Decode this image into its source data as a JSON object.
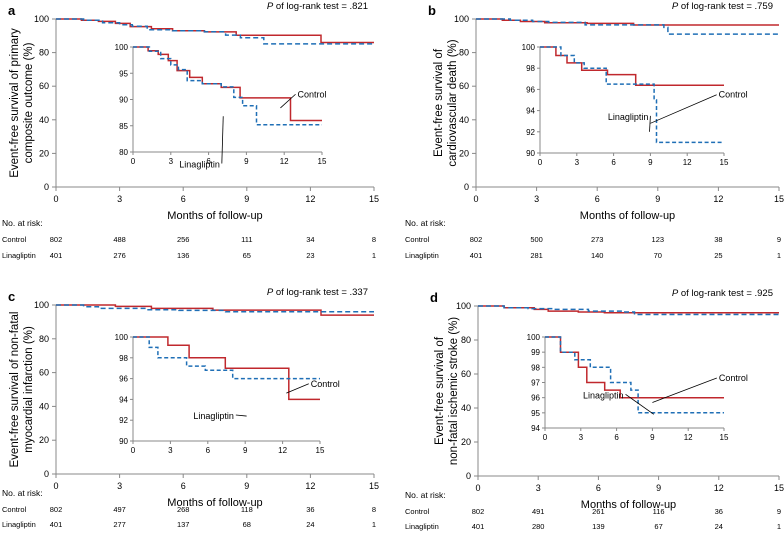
{
  "colors": {
    "control": "#c0282d",
    "linagliptin": "#1f6fb6",
    "axis": "#888888"
  },
  "chart_data": [
    {
      "type": "line",
      "panel_label": "a",
      "pvalue_label": "P",
      "pvalue_text": " of log-rank test = .821",
      "ylabel": [
        "Event-free survival of primary",
        "composite outcome (%)"
      ],
      "xlabel": "Months of follow-up",
      "xlim": [
        0,
        15
      ],
      "ylim": [
        0,
        100
      ],
      "xticks": [
        0,
        3,
        6,
        9,
        12,
        15
      ],
      "yticks": [
        0,
        20,
        40,
        60,
        80,
        100
      ],
      "series": [
        {
          "name": "Control",
          "x": [
            0,
            1.2,
            2,
            2.8,
            3.5,
            4.5,
            5.5,
            7,
            8.5,
            9,
            10.5,
            12.5,
            15
          ],
          "values": [
            100,
            99.3,
            98.6,
            97.4,
            95.5,
            94.2,
            93,
            92.3,
            90.3,
            90.3,
            90.3,
            86,
            86
          ]
        },
        {
          "name": "Linagliptin",
          "x": [
            0,
            1.3,
            2.2,
            3,
            3.6,
            4.3,
            5.5,
            7,
            8,
            8.7,
            9.8,
            12.6,
            15
          ],
          "values": [
            100,
            99.2,
            97.8,
            96.6,
            95.7,
            93.6,
            93,
            92.4,
            90.4,
            88.8,
            85.2,
            85.2,
            85.2
          ]
        }
      ],
      "inset": {
        "xlim": [
          0,
          15
        ],
        "ylim": [
          80,
          100
        ],
        "xticks": [
          0,
          3,
          6,
          9,
          12,
          15
        ],
        "yticks": [
          80,
          85,
          90,
          95,
          100
        ],
        "callouts": [
          "Control",
          "Linagliptin"
        ]
      },
      "at_risk": {
        "header": "No. at risk:",
        "rows": [
          {
            "label": "Control",
            "values": [
              "802",
              "488",
              "256",
              "111",
              "34",
              "8"
            ]
          },
          {
            "label": "Linagliptin",
            "values": [
              "401",
              "276",
              "136",
              "65",
              "23",
              "1"
            ]
          }
        ]
      }
    },
    {
      "type": "line",
      "panel_label": "b",
      "pvalue_label": "P",
      "pvalue_text": " of log-rank test = .759",
      "ylabel": [
        "Event-free survival of",
        "cardiovascular death (%)"
      ],
      "xlabel": "Months of follow-up",
      "xlim": [
        0,
        15
      ],
      "ylim": [
        0,
        100
      ],
      "xticks": [
        0,
        3,
        6,
        9,
        12,
        15
      ],
      "yticks": [
        0,
        20,
        40,
        60,
        80,
        100
      ],
      "series": [
        {
          "name": "Control",
          "x": [
            0,
            1.3,
            2.2,
            3.4,
            5.5,
            7.8,
            12.5,
            15
          ],
          "values": [
            100,
            99.2,
            98.5,
            97.8,
            97.4,
            96.4,
            96.4,
            96.4
          ]
        },
        {
          "name": "Linagliptin",
          "x": [
            0,
            1.7,
            2.8,
            3.6,
            5.4,
            9,
            9.3,
            9.5,
            15
          ],
          "values": [
            100,
            99.2,
            98.5,
            98,
            96.5,
            96.5,
            95,
            91,
            91
          ]
        }
      ],
      "inset": {
        "xlim": [
          0,
          15
        ],
        "ylim": [
          90,
          100
        ],
        "xticks": [
          0,
          3,
          6,
          9,
          12,
          15
        ],
        "yticks": [
          90,
          92,
          94,
          96,
          98,
          100
        ],
        "callouts": [
          "Control",
          "Linagliptin"
        ]
      },
      "at_risk": {
        "header": "No. at risk:",
        "rows": [
          {
            "label": "Control",
            "values": [
              "802",
              "500",
              "273",
              "123",
              "38",
              "9"
            ]
          },
          {
            "label": "Linagliptin",
            "values": [
              "401",
              "281",
              "140",
              "70",
              "25",
              "1"
            ]
          }
        ]
      }
    },
    {
      "type": "line",
      "panel_label": "c",
      "pvalue_label": "P",
      "pvalue_text": " of log-rank test = .337",
      "ylabel": [
        "Event-free survival of non-fatal",
        "myocardial infarction (%)"
      ],
      "xlabel": "Months of follow-up",
      "xlim": [
        0,
        15
      ],
      "ylim": [
        0,
        100
      ],
      "xticks": [
        0,
        3,
        6,
        9,
        12,
        15
      ],
      "yticks": [
        0,
        20,
        40,
        60,
        80,
        100
      ],
      "series": [
        {
          "name": "Control",
          "x": [
            0,
            2.8,
            4.5,
            7.4,
            12.5,
            15
          ],
          "values": [
            100,
            99.2,
            98,
            97,
            94,
            94
          ]
        },
        {
          "name": "Linagliptin",
          "x": [
            0,
            1.3,
            2,
            4.3,
            5.8,
            8,
            10.2,
            15
          ],
          "values": [
            100,
            99,
            98,
            97.2,
            96.8,
            96,
            96,
            96
          ]
        }
      ],
      "inset": {
        "xlim": [
          0,
          15
        ],
        "ylim": [
          90,
          100
        ],
        "xticks": [
          0,
          3,
          6,
          9,
          12,
          15
        ],
        "yticks": [
          90,
          92,
          94,
          96,
          98,
          100
        ],
        "callouts": [
          "Control",
          "Linagliptin"
        ]
      },
      "at_risk": {
        "header": "No. at risk:",
        "rows": [
          {
            "label": "Control",
            "values": [
              "802",
              "497",
              "268",
              "118",
              "36",
              "8"
            ]
          },
          {
            "label": "Linagliptin",
            "values": [
              "401",
              "277",
              "137",
              "68",
              "24",
              "1"
            ]
          }
        ]
      }
    },
    {
      "type": "line",
      "panel_label": "d",
      "pvalue_label": "P",
      "pvalue_text": " of log-rank test = .925",
      "ylabel": [
        "Event-free survival of",
        "non-fatal ischemic stroke (%)"
      ],
      "xlabel": "Months of follow-up",
      "xlim": [
        0,
        15
      ],
      "ylim": [
        0,
        100
      ],
      "xticks": [
        0,
        3,
        6,
        9,
        12,
        15
      ],
      "yticks": [
        0,
        20,
        40,
        60,
        80,
        100
      ],
      "series": [
        {
          "name": "Control",
          "x": [
            0,
            1.3,
            2.8,
            3.5,
            5,
            6.3,
            15
          ],
          "values": [
            100,
            99,
            98,
            97,
            96.5,
            96,
            96
          ]
        },
        {
          "name": "Linagliptin",
          "x": [
            0,
            1.3,
            2.5,
            3.8,
            5.5,
            7.2,
            7.8,
            15
          ],
          "values": [
            100,
            99,
            98.5,
            98,
            97,
            96.5,
            95,
            95
          ]
        }
      ],
      "inset": {
        "xlim": [
          0,
          15
        ],
        "ylim": [
          94,
          100
        ],
        "xticks": [
          0,
          3,
          6,
          9,
          12,
          15
        ],
        "yticks": [
          94,
          95,
          96,
          97,
          98,
          99,
          100
        ],
        "callouts": [
          "Control",
          "Linagliptin"
        ]
      },
      "at_risk": {
        "header": "No. at risk:",
        "rows": [
          {
            "label": "Control",
            "values": [
              "802",
              "491",
              "261",
              "116",
              "36",
              "9"
            ]
          },
          {
            "label": "Linagliptin",
            "values": [
              "401",
              "280",
              "139",
              "67",
              "24",
              "1"
            ]
          }
        ]
      }
    }
  ]
}
